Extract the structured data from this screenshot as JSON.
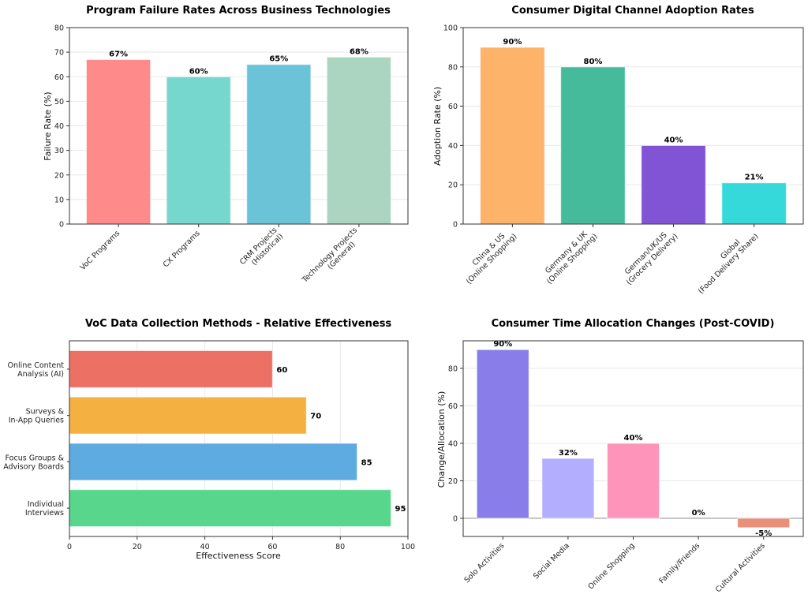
{
  "chart_data": [
    {
      "type": "bar",
      "orientation": "vertical",
      "title": "Program Failure Rates Across Business Technologies",
      "xlabel": "",
      "ylabel": "Failure Rate (%)",
      "categories": [
        "VoC Programs",
        "CX Programs",
        "CRM Projects\n(Historical)",
        "Technology Projects\n(General)"
      ],
      "values": [
        67,
        60,
        65,
        68
      ],
      "labels": [
        "67%",
        "60%",
        "65%",
        "68%"
      ],
      "colors": [
        "#ff8a8a",
        "#76d7cf",
        "#6bc3d8",
        "#abd5c1"
      ],
      "ylim": [
        0,
        80
      ],
      "yticks": [
        0,
        10,
        20,
        30,
        40,
        50,
        60,
        70,
        80
      ],
      "grid": true
    },
    {
      "type": "bar",
      "orientation": "vertical",
      "title": "Consumer Digital Channel Adoption Rates",
      "xlabel": "",
      "ylabel": "Adoption Rate (%)",
      "categories": [
        "China & US\n(Online Shopping)",
        "Germany & UK\n(Online Shopping)",
        "German/UK/US\n(Grocery Delivery)",
        "Global\n(Food Delivery Share)"
      ],
      "values": [
        90,
        80,
        40,
        21
      ],
      "labels": [
        "90%",
        "80%",
        "40%",
        "21%"
      ],
      "colors": [
        "#feb36a",
        "#45bb9b",
        "#8154d6",
        "#35d9da"
      ],
      "ylim": [
        0,
        100
      ],
      "yticks": [
        0,
        20,
        40,
        60,
        80,
        100
      ],
      "grid": true
    },
    {
      "type": "bar",
      "orientation": "horizontal",
      "title": "VoC Data Collection Methods - Relative Effectiveness",
      "xlabel": "Effectiveness Score",
      "ylabel": "",
      "categories": [
        "Online Content\nAnalysis (AI)",
        "Surveys &\nIn-App Queries",
        "Focus Groups &\nAdvisory Boards",
        "Individual\nInterviews"
      ],
      "values": [
        60,
        70,
        85,
        95
      ],
      "labels": [
        "60",
        "70",
        "85",
        "95"
      ],
      "colors": [
        "#ec7064",
        "#f5b042",
        "#5eabe2",
        "#58d68c"
      ],
      "xlim": [
        0,
        100
      ],
      "xticks": [
        0,
        20,
        40,
        60,
        80,
        100
      ],
      "grid": true
    },
    {
      "type": "bar",
      "orientation": "vertical",
      "title": "Consumer Time Allocation Changes (Post-COVID)",
      "xlabel": "",
      "ylabel": "Change/Allocation (%)",
      "categories": [
        "Solo Activities",
        "Social Media",
        "Online Shopping",
        "Family/Friends",
        "Cultural Activities"
      ],
      "values": [
        90,
        32,
        40,
        0,
        -5
      ],
      "labels": [
        "90%",
        "32%",
        "40%",
        "0%",
        "-5%"
      ],
      "colors": [
        "#897ee9",
        "#b3affe",
        "#fe94b9",
        "#a8e6cf",
        "#e98f7a"
      ],
      "ylim": [
        -9.7,
        94.7
      ],
      "yticks": [
        0,
        20,
        40,
        60,
        80
      ],
      "grid": true,
      "zero_line": true
    }
  ]
}
